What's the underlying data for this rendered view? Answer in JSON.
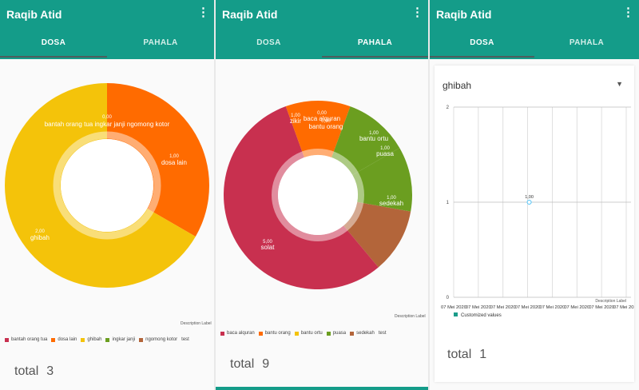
{
  "colors": {
    "primary": "#149c89",
    "crimson": "#c8304f",
    "orange": "#ff6b00",
    "yellow": "#f4c30a",
    "green": "#6b9e20",
    "brown": "#b3653a",
    "teal": "#1b9c8a"
  },
  "screen1": {
    "app_title": "Raqib Atid",
    "tabs": [
      "DOSA",
      "PAHALA"
    ],
    "active_tab": 0,
    "chart_data": {
      "type": "pie",
      "title": "",
      "description": "Description Label",
      "categories": [
        "bantah orang tua",
        "dosa lain",
        "ghibah",
        "ingkar janji",
        "ngomong kotor"
      ],
      "values": [
        0,
        1,
        2,
        0,
        0
      ],
      "value_labels": [
        "0,00",
        "1,00",
        "2,00",
        "0,00",
        "0,00"
      ],
      "overlap_label": "bantah orang tua ingkar janji ngomong kotor",
      "legend_suffix": "test"
    },
    "total_label": "total",
    "total_value": "3"
  },
  "screen2": {
    "app_title": "Raqib Atid",
    "tabs": [
      "DOSA",
      "PAHALA"
    ],
    "active_tab": 1,
    "chart_data": {
      "type": "pie",
      "title": "",
      "description": "Description Label",
      "categories": [
        "solat",
        "zikir",
        "baca alquran",
        "bantu orang",
        "bantu ortu",
        "puasa",
        "sedekah"
      ],
      "values": [
        5,
        1,
        0,
        0,
        1,
        1,
        1
      ],
      "value_labels": [
        "5,00",
        "1,00",
        "0,00",
        "0,00",
        "1,00",
        "1,00",
        "1,00"
      ],
      "legend": [
        "baca alquran",
        "bantu orang",
        "bantu ortu",
        "puasa",
        "sedekah"
      ],
      "legend_suffix": "test"
    },
    "total_label": "total",
    "total_value": "9"
  },
  "screen3": {
    "app_title": "Raqib Atid",
    "tabs": [
      "DOSA",
      "PAHALA"
    ],
    "active_tab": 0,
    "selected_category": "ghibah",
    "chart_data": {
      "type": "line",
      "title": "",
      "description": "Description Label",
      "ylim": [
        0,
        2
      ],
      "y_ticks": [
        "0",
        "1",
        "2"
      ],
      "x_ticks": [
        "07 Mei 2020",
        "07 Mei 2020",
        "07 Mei 2020",
        "07 Mei 2020",
        "07 Mei 2020",
        "07 Mei 2020",
        "07 Mei 2020",
        "07 Mei 2020"
      ],
      "series": [
        {
          "name": "Customized values",
          "x": [
            3
          ],
          "y": [
            1
          ],
          "labels": [
            "1,00"
          ]
        }
      ]
    },
    "total_label": "total",
    "total_value": "1"
  }
}
